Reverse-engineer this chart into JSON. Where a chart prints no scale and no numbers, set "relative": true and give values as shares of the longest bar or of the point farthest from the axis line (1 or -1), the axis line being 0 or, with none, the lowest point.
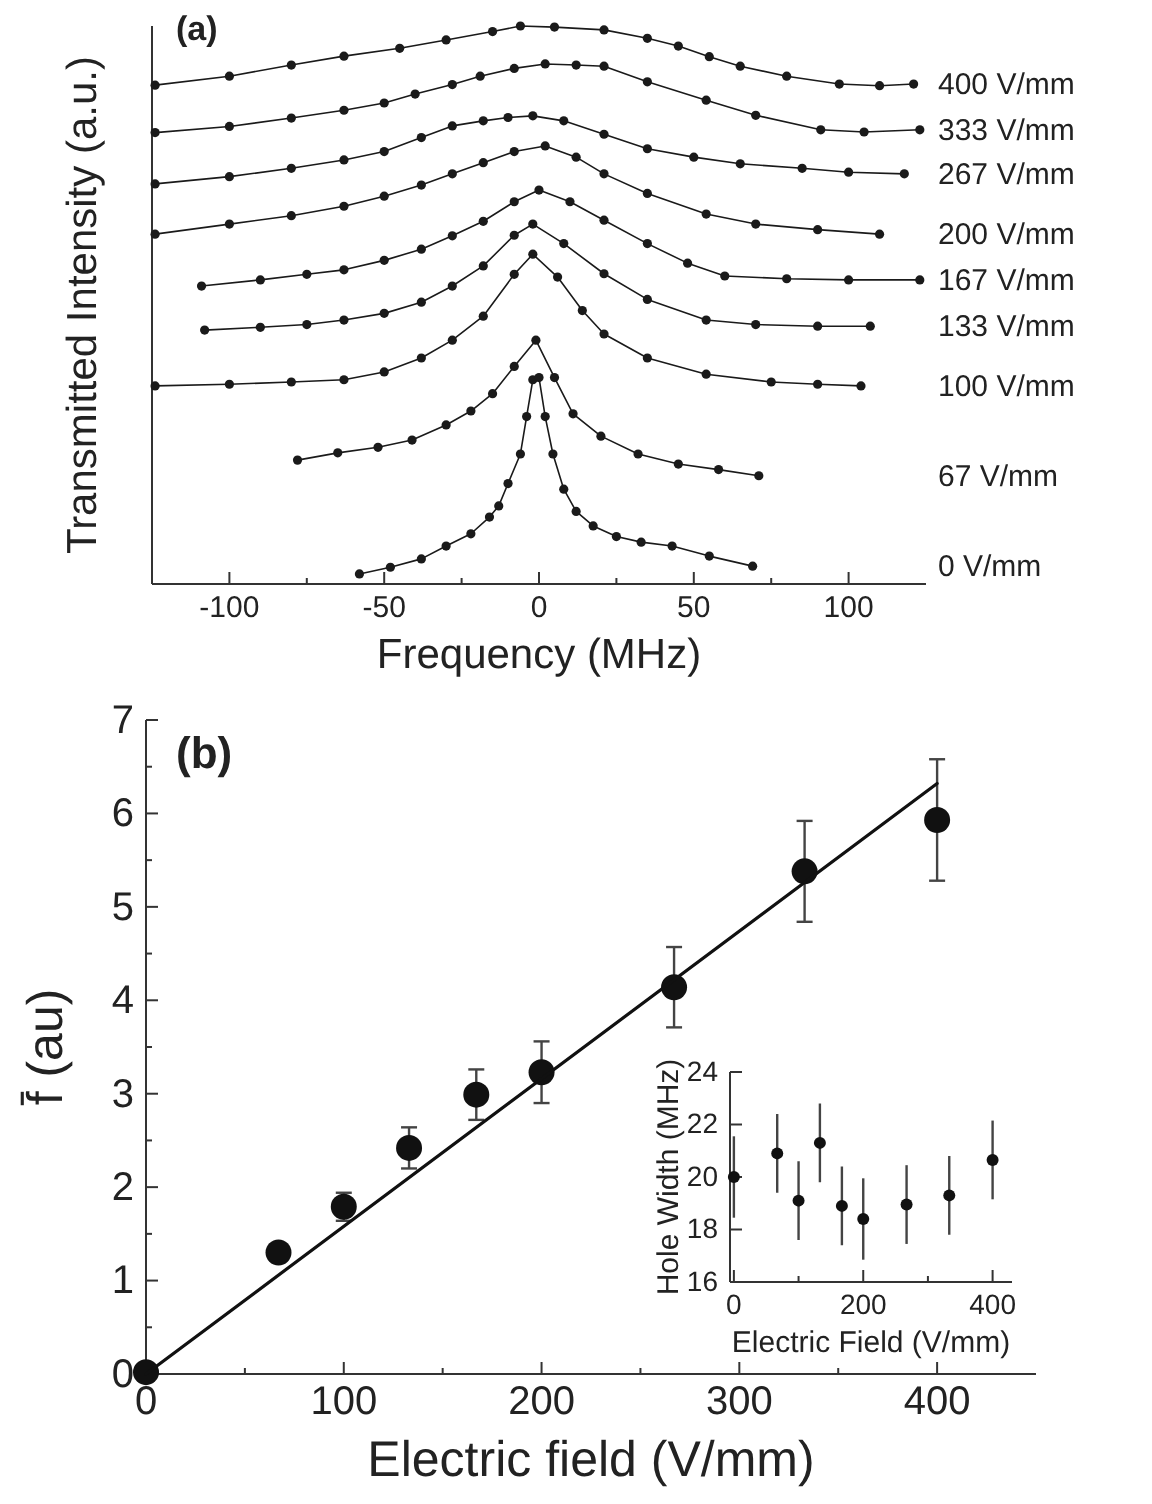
{
  "chart_data": [
    {
      "type": "line",
      "title": "(a)",
      "xlabel": "Frequency (MHz)",
      "ylabel": "Transmitted Intensity (a.u.)",
      "relative": true,
      "marker": "circle",
      "xlim": [
        -125,
        125
      ],
      "xticks": [
        -100,
        {
          "value": -75,
          "label": null
        },
        -50,
        {
          "value": -25,
          "label": null
        },
        0,
        {
          "value": 25,
          "label": null
        },
        50,
        {
          "value": 75,
          "label": null
        },
        100
      ],
      "series": [
        {
          "name": "400 V/mm",
          "color": "#1a1a1a",
          "x": [
            -124,
            -100,
            -80,
            -63,
            -45,
            -30,
            -15,
            -6,
            5,
            21,
            35,
            45,
            55,
            65,
            80,
            97,
            110,
            121
          ],
          "values": [
            0.894,
            0.91,
            0.93,
            0.946,
            0.96,
            0.975,
            0.99,
            1,
            0.998,
            0.993,
            0.978,
            0.964,
            0.945,
            0.928,
            0.91,
            0.896,
            0.893,
            0.896
          ]
        },
        {
          "name": "333 V/mm",
          "color": "#1a1a1a",
          "x": [
            -124,
            -100,
            -80,
            -63,
            -50,
            -40,
            -28,
            -19,
            -8,
            2,
            12,
            21,
            35,
            54,
            70,
            91,
            105,
            123
          ],
          "values": [
            0.809,
            0.82,
            0.835,
            0.849,
            0.862,
            0.878,
            0.895,
            0.91,
            0.924,
            0.932,
            0.93,
            0.928,
            0.9,
            0.867,
            0.84,
            0.814,
            0.81,
            0.814
          ]
        },
        {
          "name": "267 V/mm",
          "color": "#1a1a1a",
          "x": [
            -124,
            -100,
            -80,
            -63,
            -50,
            -38,
            -28,
            -18,
            -10,
            -2,
            8,
            21,
            35,
            50,
            65,
            85,
            100,
            118
          ],
          "values": [
            0.717,
            0.73,
            0.745,
            0.76,
            0.775,
            0.8,
            0.821,
            0.83,
            0.836,
            0.839,
            0.83,
            0.806,
            0.78,
            0.765,
            0.753,
            0.745,
            0.738,
            0.735
          ]
        },
        {
          "name": "200 V/mm",
          "color": "#1a1a1a",
          "x": [
            -124,
            -100,
            -80,
            -63,
            -50,
            -38,
            -28,
            -18,
            -8,
            2,
            12,
            21,
            35,
            54,
            70,
            90,
            110
          ],
          "values": [
            0.627,
            0.645,
            0.66,
            0.677,
            0.695,
            0.715,
            0.735,
            0.755,
            0.775,
            0.785,
            0.765,
            0.735,
            0.7,
            0.663,
            0.645,
            0.635,
            0.627
          ]
        },
        {
          "name": "167 V/mm",
          "color": "#1a1a1a",
          "x": [
            -109,
            -90,
            -75,
            -63,
            -50,
            -38,
            -28,
            -18,
            -8,
            0,
            10,
            21,
            35,
            48,
            60,
            80,
            100,
            123
          ],
          "values": [
            0.534,
            0.545,
            0.555,
            0.563,
            0.58,
            0.6,
            0.624,
            0.65,
            0.685,
            0.706,
            0.685,
            0.652,
            0.61,
            0.575,
            0.552,
            0.547,
            0.545,
            0.545
          ]
        },
        {
          "name": "133 V/mm",
          "color": "#1a1a1a",
          "x": [
            -108,
            -90,
            -75,
            -63,
            -50,
            -38,
            -28,
            -18,
            -8,
            -2,
            8,
            21,
            35,
            54,
            70,
            90,
            107
          ],
          "values": [
            0.455,
            0.46,
            0.465,
            0.473,
            0.485,
            0.505,
            0.534,
            0.57,
            0.625,
            0.645,
            0.61,
            0.556,
            0.51,
            0.473,
            0.465,
            0.462,
            0.462
          ]
        },
        {
          "name": "100 V/mm",
          "color": "#1a1a1a",
          "x": [
            -124,
            -100,
            -80,
            -63,
            -50,
            -38,
            -28,
            -18,
            -8,
            -2,
            6,
            14,
            21,
            35,
            54,
            75,
            90,
            104
          ],
          "values": [
            0.355,
            0.358,
            0.362,
            0.366,
            0.38,
            0.405,
            0.437,
            0.48,
            0.555,
            0.591,
            0.55,
            0.49,
            0.448,
            0.405,
            0.376,
            0.362,
            0.358,
            0.355
          ]
        },
        {
          "name": "67 V/mm",
          "color": "#1a1a1a",
          "x": [
            -78,
            -65,
            -52,
            -41,
            -30,
            -22,
            -15,
            -8,
            -1,
            5,
            11,
            20,
            32,
            45,
            58,
            71
          ],
          "values": [
            0.222,
            0.235,
            0.245,
            0.258,
            0.285,
            0.31,
            0.341,
            0.39,
            0.437,
            0.37,
            0.305,
            0.265,
            0.233,
            0.215,
            0.205,
            0.194
          ]
        },
        {
          "name": "0 V/mm",
          "color": "#1a1a1a",
          "x": [
            -58,
            -48,
            -38,
            -30,
            -22,
            -16,
            -13,
            -10,
            -6,
            -4,
            -2,
            0,
            2,
            4.5,
            8,
            12,
            17.5,
            25,
            33,
            43,
            55,
            69
          ],
          "values": [
            0.018,
            0.03,
            0.045,
            0.068,
            0.09,
            0.12,
            0.14,
            0.18,
            0.233,
            0.3,
            0.366,
            0.37,
            0.3,
            0.233,
            0.17,
            0.13,
            0.104,
            0.085,
            0.075,
            0.068,
            0.05,
            0.032
          ]
        }
      ]
    },
    {
      "type": "scatter",
      "title": "(b)",
      "xlabel": "Electric field (V/mm)",
      "ylabel": "f̄ (au)",
      "marker": "circle",
      "xlim": [
        0,
        450
      ],
      "xticks": [
        0,
        {
          "value": 50,
          "label": null
        },
        100,
        {
          "value": 150,
          "label": null
        },
        200,
        {
          "value": 250,
          "label": null
        },
        300,
        {
          "value": 350,
          "label": null
        },
        400
      ],
      "ylim": [
        0,
        7
      ],
      "yticks": [
        0,
        {
          "value": 0.5,
          "label": null
        },
        1,
        {
          "value": 1.5,
          "label": null
        },
        2,
        {
          "value": 2.5,
          "label": null
        },
        3,
        {
          "value": 3.5,
          "label": null
        },
        4,
        {
          "value": 4.5,
          "label": null
        },
        5,
        {
          "value": 5.5,
          "label": null
        },
        6,
        {
          "value": 6.5,
          "label": null
        },
        7
      ],
      "series": [
        {
          "color": "#111111",
          "x": [
            0,
            67,
            100,
            133,
            167,
            200,
            267,
            333,
            400
          ],
          "values": [
            0.02,
            1.3,
            1.79,
            2.42,
            2.99,
            3.23,
            4.14,
            5.38,
            5.93
          ],
          "errors": [
            null,
            0.08,
            0.15,
            0.22,
            0.27,
            0.33,
            0.43,
            0.54,
            0.65
          ]
        },
        {
          "type": "line",
          "marker": "none",
          "color": "#111111",
          "x": [
            0,
            400
          ],
          "values": [
            0,
            6.32
          ]
        }
      ]
    },
    {
      "type": "scatter",
      "xlabel": "Electric Field (V/mm)",
      "ylabel": "Hole Width (MHz)",
      "marker": "circle",
      "xlim": [
        -6,
        430
      ],
      "xticks": [
        0,
        {
          "value": 100,
          "label": null
        },
        200,
        {
          "value": 300,
          "label": null
        },
        400
      ],
      "ylim": [
        16,
        24
      ],
      "yticks": [
        16,
        18,
        20,
        22,
        24
      ],
      "series": [
        {
          "color": "#111111",
          "x": [
            0,
            67,
            100,
            133,
            167,
            200,
            267,
            333,
            400
          ],
          "values": [
            20.0,
            20.9,
            19.1,
            21.3,
            18.9,
            18.4,
            18.95,
            19.3,
            20.65
          ],
          "errors": [
            1.55,
            1.5,
            1.5,
            1.5,
            1.5,
            1.55,
            1.5,
            1.5,
            1.5
          ]
        }
      ]
    }
  ]
}
